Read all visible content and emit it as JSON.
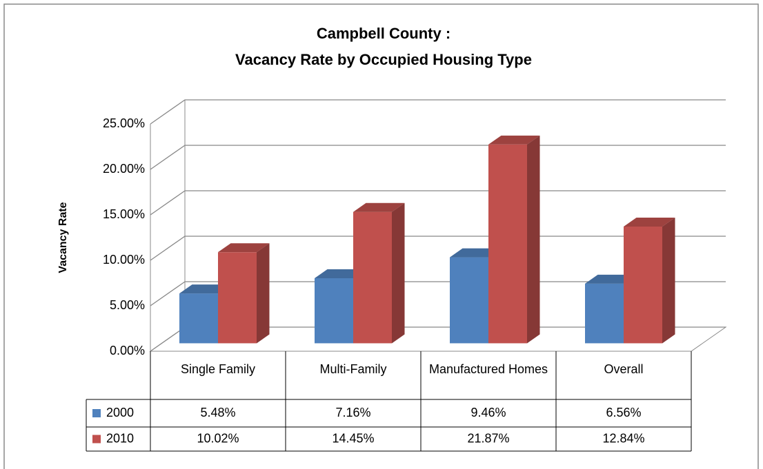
{
  "chart_data": {
    "type": "bar3d",
    "title": [
      "Campbell County :",
      "Vacancy Rate by Occupied Housing Type"
    ],
    "ylabel": "Vacancy Rate",
    "categories": [
      "Single Family",
      "Multi-Family",
      "Manufactured Homes",
      "Overall"
    ],
    "series": [
      {
        "name": "2000",
        "color": "#4f81bd",
        "values": [
          5.48,
          7.16,
          9.46,
          6.56
        ],
        "value_labels": [
          "5.48%",
          "7.16%",
          "9.46%",
          "6.56%"
        ]
      },
      {
        "name": "2010",
        "color": "#c0504d",
        "values": [
          10.02,
          14.45,
          21.87,
          12.84
        ],
        "value_labels": [
          "10.02%",
          "14.45%",
          "21.87%",
          "12.84%"
        ]
      }
    ],
    "ylim": [
      0,
      25
    ],
    "yticks": [
      {
        "value": 0,
        "label": "0.00%"
      },
      {
        "value": 5,
        "label": "5.00%"
      },
      {
        "value": 10,
        "label": "10.00%"
      },
      {
        "value": 15,
        "label": "15.00%"
      },
      {
        "value": 20,
        "label": "20.00%"
      },
      {
        "value": 25,
        "label": "25.00%"
      }
    ],
    "grid": true,
    "data_table": true
  }
}
